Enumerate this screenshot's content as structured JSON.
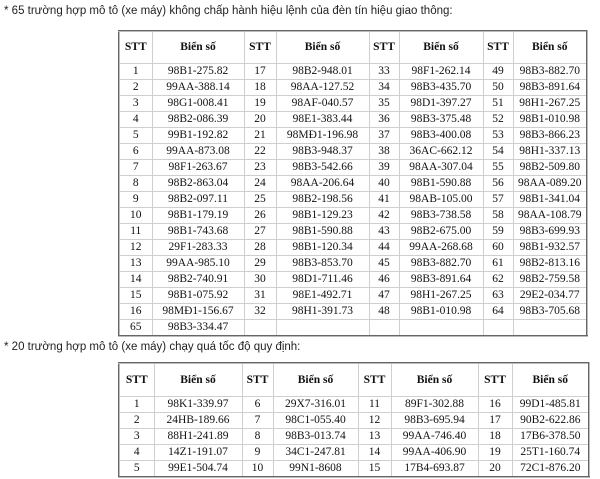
{
  "note1": "* 65 trường hợp mô tô (xe máy) không chấp hành hiệu lệnh của đèn tín hiệu giao thông:",
  "note2": "* 20 trường hợp mô tô (xe máy) chạy quá tốc độ quy định:",
  "headers": [
    "STT",
    "Biển số",
    "STT",
    "Biển số",
    "STT",
    "Biển số",
    "STT",
    "Biển số"
  ],
  "table1": [
    [
      "1",
      "98B1-275.82",
      "17",
      "98B2-948.01",
      "33",
      "98F1-262.14",
      "49",
      "98B3-882.70"
    ],
    [
      "2",
      "99AA-388.14",
      "18",
      "98AA-127.52",
      "34",
      "98B3-435.70",
      "50",
      "98B3-891.64"
    ],
    [
      "3",
      "98G1-008.41",
      "19",
      "98AF-040.57",
      "35",
      "98D1-397.27",
      "51",
      "98H1-267.25"
    ],
    [
      "4",
      "98B2-086.39",
      "20",
      "98E1-383.44",
      "36",
      "98B3-375.48",
      "52",
      "98B1-010.98"
    ],
    [
      "5",
      "99B1-192.82",
      "21",
      "98MĐ1-196.98",
      "37",
      "98B3-400.08",
      "53",
      "98B3-866.23"
    ],
    [
      "6",
      "99AA-873.08",
      "22",
      "98B3-948.37",
      "38",
      "36AC-662.12",
      "54",
      "98H1-337.13"
    ],
    [
      "7",
      "98F1-263.67",
      "23",
      "98B3-542.66",
      "39",
      "98AA-307.04",
      "55",
      "98B2-509.80"
    ],
    [
      "8",
      "98B2-863.04",
      "24",
      "98AA-206.64",
      "40",
      "98B1-590.88",
      "56",
      "98AA-089.20"
    ],
    [
      "9",
      "98B2-097.11",
      "25",
      "98B2-198.56",
      "41",
      "98AB-105.00",
      "57",
      "98B1-341.04"
    ],
    [
      "10",
      "98B1-179.19",
      "26",
      "98B1-129.23",
      "42",
      "98B3-738.58",
      "58",
      "98AA-108.79"
    ],
    [
      "11",
      "98B1-743.68",
      "27",
      "98B1-590.88",
      "43",
      "98B2-675.00",
      "59",
      "98B3-699.93"
    ],
    [
      "12",
      "29F1-283.33",
      "28",
      "98B1-120.34",
      "44",
      "99AA-268.68",
      "60",
      "98B1-932.57"
    ],
    [
      "13",
      "99AA-985.10",
      "29",
      "98B3-853.70",
      "45",
      "98B3-882.70",
      "61",
      "98B2-813.16"
    ],
    [
      "14",
      "98B2-740.91",
      "30",
      "98D1-711.46",
      "46",
      "98B3-891.64",
      "62",
      "98B2-759.58"
    ],
    [
      "15",
      "98B1-075.92",
      "31",
      "98E1-492.71",
      "47",
      "98H1-267.25",
      "63",
      "29E2-034.77"
    ],
    [
      "16",
      "98MĐ1-156.67",
      "32",
      "98H1-391.73",
      "48",
      "98B1-010.98",
      "64",
      "98B3-705.68"
    ],
    [
      "65",
      "98B3-334.47",
      "",
      "",
      "",
      "",
      "",
      ""
    ]
  ],
  "table2": [
    [
      "1",
      "98K1-339.97",
      "6",
      "29X7-316.01",
      "11",
      "89F1-302.88",
      "16",
      "99D1-485.81"
    ],
    [
      "2",
      "24HB-189.66",
      "7",
      "98C1-055.40",
      "12",
      "98B3-695.94",
      "17",
      "90B2-622.86"
    ],
    [
      "3",
      "88H1-241.89",
      "8",
      "98B3-013.74",
      "13",
      "99AA-746.40",
      "18",
      "17B6-378.50"
    ],
    [
      "4",
      "14Z1-191.07",
      "9",
      "34C1-247.81",
      "14",
      "99AA-406.90",
      "19",
      "25T1-160.74"
    ],
    [
      "5",
      "99E1-504.74",
      "10",
      "99N1-8608",
      "15",
      "17B4-693.87",
      "20",
      "72C1-876.20"
    ]
  ]
}
